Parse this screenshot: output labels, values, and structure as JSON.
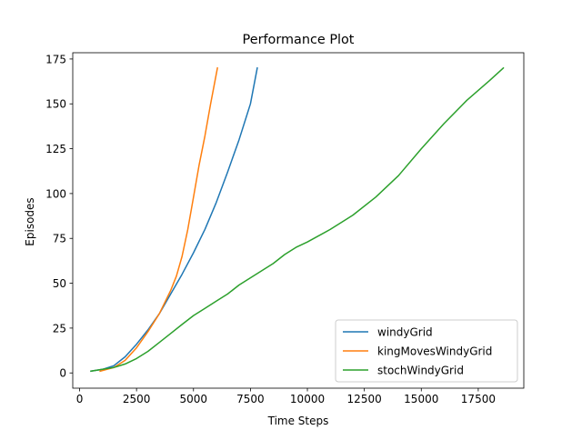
{
  "chart_data": {
    "type": "line",
    "title": "Performance Plot",
    "xlabel": "Time Steps",
    "ylabel": "Episodes",
    "xlim": [
      -300,
      19500
    ],
    "ylim": [
      -8.5,
      178.5
    ],
    "xticks": [
      0,
      2500,
      5000,
      7500,
      10000,
      12500,
      15000,
      17500
    ],
    "xtick_labels": [
      "0",
      "2500",
      "5000",
      "7500",
      "10000",
      "12500",
      "15000",
      "17500"
    ],
    "yticks": [
      0,
      25,
      50,
      75,
      100,
      125,
      150,
      175
    ],
    "ytick_labels": [
      "0",
      "25",
      "50",
      "75",
      "100",
      "125",
      "150",
      "175"
    ],
    "grid": false,
    "legend_position": "lower right",
    "series": [
      {
        "name": "windyGrid",
        "color": "#1f77b4",
        "x": [
          500,
          1000,
          1500,
          2000,
          2500,
          3000,
          3500,
          4000,
          4500,
          5000,
          5500,
          6000,
          6500,
          7000,
          7500,
          7800
        ],
        "y": [
          1,
          2,
          4,
          9,
          16,
          24,
          33,
          44,
          55,
          67,
          80,
          95,
          112,
          130,
          150,
          170
        ]
      },
      {
        "name": "kingMovesWindyGrid",
        "color": "#ff7f0e",
        "x": [
          900,
          1200,
          1500,
          2000,
          2500,
          3000,
          3500,
          4000,
          4250,
          4500,
          4750,
          5000,
          5250,
          5500,
          5750,
          6050
        ],
        "y": [
          1,
          2,
          3,
          7,
          14,
          23,
          33,
          46,
          54,
          65,
          80,
          98,
          116,
          132,
          150,
          170
        ]
      },
      {
        "name": "stochWindyGrid",
        "color": "#2ca02c",
        "x": [
          500,
          1000,
          1500,
          2000,
          2500,
          3000,
          3500,
          4000,
          4500,
          5000,
          5500,
          6000,
          6500,
          7000,
          7500,
          8000,
          8500,
          9000,
          9500,
          10000,
          11000,
          12000,
          13000,
          14000,
          15000,
          16000,
          17000,
          18000,
          18600
        ],
        "y": [
          1,
          2,
          3,
          5,
          8,
          12,
          17,
          22,
          27,
          32,
          36,
          40,
          44,
          49,
          53,
          57,
          61,
          66,
          70,
          73,
          80,
          88,
          98,
          110,
          125,
          139,
          152,
          163,
          170
        ]
      }
    ]
  }
}
